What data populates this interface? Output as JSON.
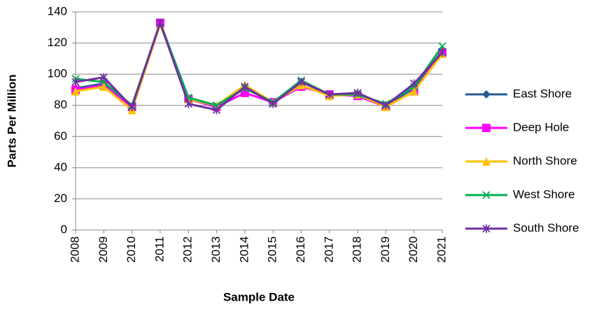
{
  "chart_data": {
    "type": "line",
    "x_label": "Sample Date",
    "y_label": "Parts Per Million",
    "categories": [
      "2008",
      "2009",
      "2010",
      "2011",
      "2012",
      "2013",
      "2014",
      "2015",
      "2016",
      "2017",
      "2018",
      "2019",
      "2020",
      "2021"
    ],
    "series": [
      {
        "name": "East Shore",
        "color": "#255e91",
        "marker": "diamond",
        "values": [
          91,
          94,
          79,
          133,
          84,
          79,
          91,
          82,
          95,
          87,
          87,
          80,
          91,
          115
        ]
      },
      {
        "name": "Deep Hole",
        "color": "#ff00ff",
        "marker": "square",
        "values": [
          90,
          93,
          79,
          133,
          84,
          79,
          88,
          82,
          92,
          87,
          86,
          79,
          89,
          114
        ]
      },
      {
        "name": "North Shore",
        "color": "#ffc000",
        "marker": "triangle",
        "values": [
          89,
          92,
          77,
          132,
          84,
          80,
          93,
          82,
          93,
          86,
          87,
          79,
          89,
          113
        ]
      },
      {
        "name": "West Shore",
        "color": "#00b050",
        "marker": "x",
        "values": [
          97,
          95,
          80,
          133,
          85,
          80,
          91,
          82,
          96,
          87,
          87,
          81,
          92,
          118
        ]
      },
      {
        "name": "South Shore",
        "color": "#7030a0",
        "marker": "star",
        "values": [
          95,
          98,
          79,
          133,
          81,
          77,
          92,
          81,
          95,
          87,
          88,
          80,
          94,
          114
        ]
      }
    ],
    "ylim": [
      0,
      140
    ],
    "yticks": [
      0,
      20,
      40,
      60,
      80,
      100,
      120,
      140
    ],
    "grid": true,
    "legend": "right"
  }
}
